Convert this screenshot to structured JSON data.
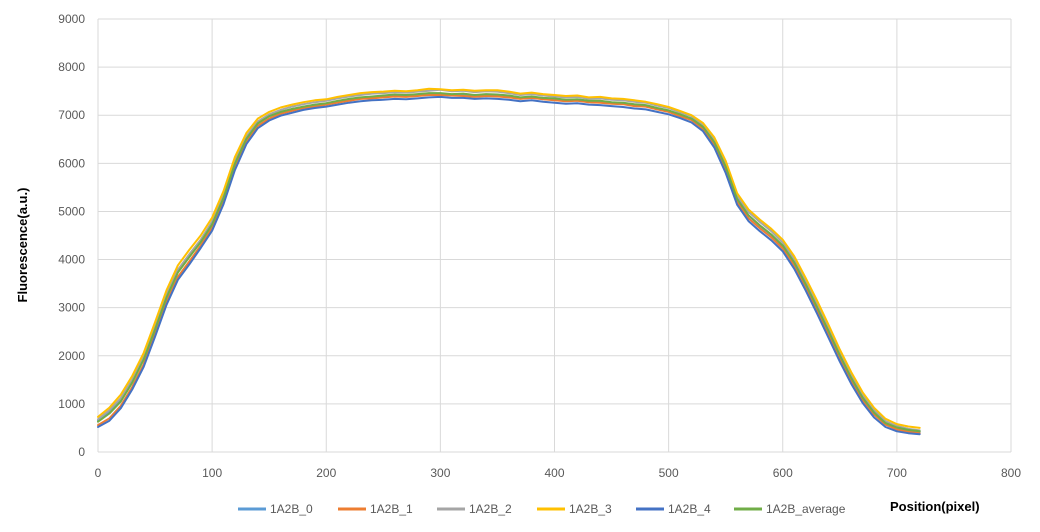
{
  "chart_data": {
    "type": "line",
    "title": "",
    "xlabel": "Position(pixel)",
    "ylabel": "Fluorescence(a.u.)",
    "xlim": [
      0,
      800
    ],
    "ylim": [
      0,
      9000
    ],
    "x_ticks": [
      "0",
      "100",
      "200",
      "300",
      "400",
      "500",
      "600",
      "700",
      "800"
    ],
    "y_ticks": [
      "0",
      "1000",
      "2000",
      "3000",
      "4000",
      "5000",
      "6000",
      "7000",
      "8000",
      "9000"
    ],
    "grid": true,
    "legend_position": "bottom",
    "x": [
      0,
      10,
      20,
      30,
      40,
      50,
      60,
      70,
      80,
      90,
      100,
      110,
      120,
      130,
      140,
      150,
      160,
      170,
      180,
      190,
      200,
      210,
      220,
      230,
      240,
      250,
      260,
      270,
      280,
      290,
      300,
      310,
      320,
      330,
      340,
      350,
      360,
      370,
      380,
      390,
      400,
      410,
      420,
      430,
      440,
      450,
      460,
      470,
      480,
      490,
      500,
      510,
      520,
      530,
      540,
      550,
      560,
      570,
      580,
      590,
      600,
      610,
      620,
      630,
      640,
      650,
      660,
      670,
      680,
      690,
      700,
      710,
      720
    ],
    "series": [
      {
        "name": "1A2B_0",
        "color": "#5b9bd5",
        "values": [
          650,
          840,
          1090,
          1480,
          1950,
          2580,
          3230,
          3760,
          4070,
          4380,
          4740,
          5280,
          5990,
          6520,
          6830,
          6980,
          7050,
          7130,
          7170,
          7210,
          7240,
          7280,
          7330,
          7360,
          7380,
          7400,
          7410,
          7400,
          7420,
          7430,
          7450,
          7420,
          7430,
          7410,
          7420,
          7410,
          7390,
          7360,
          7380,
          7350,
          7340,
          7310,
          7320,
          7280,
          7290,
          7260,
          7250,
          7210,
          7190,
          7140,
          7090,
          7010,
          6930,
          6760,
          6440,
          5930,
          5270,
          4920,
          4700,
          4510,
          4280,
          3940,
          3490,
          3020,
          2530,
          2020,
          1560,
          1150,
          840,
          610,
          510,
          450,
          420
        ]
      },
      {
        "name": "1A2B_1",
        "color": "#ed7d31",
        "values": [
          560,
          700,
          960,
          1350,
          1820,
          2460,
          3120,
          3640,
          3960,
          4290,
          4660,
          5210,
          5920,
          6460,
          6780,
          6930,
          7030,
          7090,
          7150,
          7180,
          7220,
          7260,
          7300,
          7340,
          7350,
          7370,
          7390,
          7380,
          7400,
          7420,
          7420,
          7410,
          7400,
          7380,
          7400,
          7390,
          7370,
          7340,
          7360,
          7330,
          7310,
          7290,
          7300,
          7270,
          7260,
          7240,
          7230,
          7190,
          7180,
          7120,
          7070,
          6980,
          6900,
          6720,
          6390,
          5860,
          5200,
          4860,
          4650,
          4460,
          4230,
          3880,
          3420,
          2940,
          2440,
          1940,
          1480,
          1080,
          780,
          570,
          470,
          420,
          390
        ]
      },
      {
        "name": "1A2B_2",
        "color": "#a5a5a5",
        "values": [
          680,
          870,
          1120,
          1500,
          1980,
          2620,
          3270,
          3790,
          4110,
          4410,
          4790,
          5340,
          6050,
          6560,
          6870,
          7020,
          7110,
          7180,
          7230,
          7270,
          7300,
          7350,
          7390,
          7420,
          7450,
          7460,
          7480,
          7470,
          7490,
          7510,
          7530,
          7500,
          7510,
          7480,
          7500,
          7490,
          7460,
          7420,
          7440,
          7410,
          7390,
          7370,
          7380,
          7340,
          7350,
          7320,
          7310,
          7280,
          7260,
          7200,
          7150,
          7060,
          6980,
          6800,
          6500,
          6000,
          5330,
          4990,
          4780,
          4590,
          4350,
          4010,
          3560,
          3080,
          2580,
          2060,
          1600,
          1180,
          870,
          640,
          540,
          480,
          450
        ]
      },
      {
        "name": "1A2B_3",
        "color": "#ffc000",
        "values": [
          730,
          920,
          1190,
          1580,
          2060,
          2700,
          3360,
          3880,
          4200,
          4500,
          4870,
          5420,
          6130,
          6630,
          6930,
          7070,
          7160,
          7220,
          7270,
          7310,
          7330,
          7380,
          7420,
          7460,
          7480,
          7490,
          7510,
          7500,
          7520,
          7550,
          7540,
          7520,
          7530,
          7510,
          7520,
          7520,
          7490,
          7450,
          7470,
          7440,
          7420,
          7400,
          7410,
          7370,
          7380,
          7350,
          7340,
          7310,
          7280,
          7230,
          7170,
          7090,
          7000,
          6840,
          6540,
          6050,
          5380,
          5040,
          4830,
          4640,
          4410,
          4070,
          3620,
          3150,
          2650,
          2130,
          1660,
          1240,
          920,
          690,
          580,
          530,
          500
        ]
      },
      {
        "name": "1A2B_4",
        "color": "#4472c4",
        "values": [
          520,
          650,
          910,
          1300,
          1770,
          2400,
          3060,
          3580,
          3900,
          4240,
          4600,
          5150,
          5860,
          6400,
          6730,
          6890,
          6990,
          7050,
          7110,
          7150,
          7180,
          7220,
          7260,
          7290,
          7310,
          7320,
          7340,
          7330,
          7350,
          7370,
          7380,
          7360,
          7360,
          7340,
          7350,
          7340,
          7320,
          7290,
          7310,
          7280,
          7260,
          7240,
          7250,
          7220,
          7210,
          7190,
          7170,
          7140,
          7120,
          7070,
          7020,
          6940,
          6850,
          6670,
          6330,
          5800,
          5140,
          4800,
          4590,
          4400,
          4170,
          3810,
          3360,
          2880,
          2380,
          1880,
          1420,
          1020,
          720,
          520,
          430,
          390,
          370
        ]
      },
      {
        "name": "1A2B_average",
        "color": "#70ad47",
        "values": [
          630,
          800,
          1050,
          1440,
          1920,
          2550,
          3210,
          3730,
          4050,
          4360,
          4730,
          5280,
          5990,
          6510,
          6830,
          6980,
          7070,
          7130,
          7180,
          7220,
          7250,
          7300,
          7340,
          7370,
          7390,
          7410,
          7430,
          7420,
          7440,
          7460,
          7460,
          7440,
          7450,
          7420,
          7440,
          7430,
          7410,
          7370,
          7390,
          7360,
          7350,
          7320,
          7330,
          7300,
          7300,
          7270,
          7260,
          7230,
          7210,
          7150,
          7100,
          7020,
          6930,
          6760,
          6440,
          5930,
          5260,
          4920,
          4710,
          4520,
          4290,
          3940,
          3490,
          3010,
          2520,
          2010,
          1540,
          1130,
          820,
          600,
          510,
          460,
          430
        ]
      }
    ]
  }
}
